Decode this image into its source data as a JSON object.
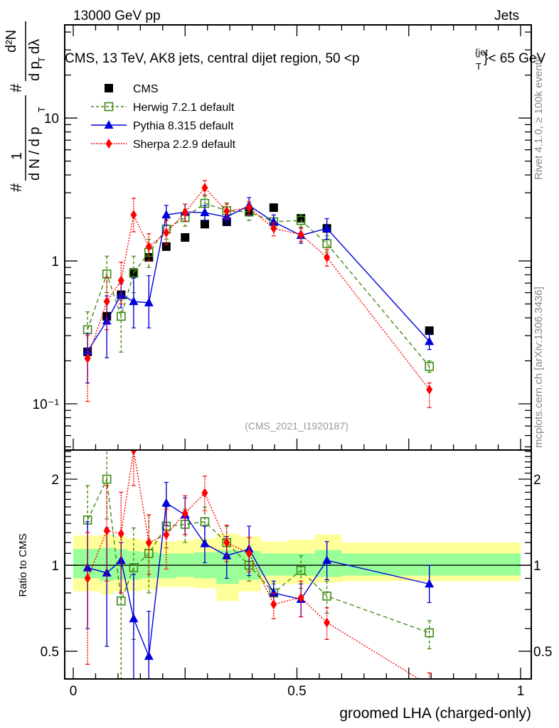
{
  "header": {
    "left": "13000 GeV pp",
    "right": "Jets"
  },
  "side_labels": {
    "rivet": "Rivet 4.1.0, ≥ 100k events",
    "mcplots": "mcplots.cern.ch [arXiv:1306.3436]"
  },
  "chart_data": [
    {
      "type": "line",
      "panel": "main",
      "title": "CMS, 13 TeV, AK8 jets, central dijet region, 50 <p_T^{jet}< 65 GeV",
      "title_parts": {
        "main": "CMS, 13 TeV, AK8 jets, central dijet region, 50 <p",
        "sup": "{jet",
        "sub": "T",
        "tail": "}< 65 GeV"
      },
      "ylabel": "1/N dN/dp_T d²N/dp_T dλ",
      "ylabel_parts": {
        "num1": "1",
        "den1": "d N / d p",
        "den1_sub": "T",
        "num2": "d²N",
        "den2": "d p",
        "den2_sub": "T",
        "den2_tail": " dλ",
        "hash": "#"
      },
      "yscale": "log",
      "ylim": [
        0.0475,
        44.9
      ],
      "xlim": [
        -0.02,
        1.02
      ],
      "yticks": [
        {
          "v": 0.1,
          "label": "10⁻¹"
        },
        {
          "v": 1,
          "label": "1"
        },
        {
          "v": 10,
          "label": "10"
        }
      ],
      "watermark": "(CMS_2021_I1920187)",
      "legend_position": "top-left",
      "x": [
        0.032,
        0.075,
        0.107,
        0.135,
        0.169,
        0.208,
        0.25,
        0.294,
        0.343,
        0.393,
        0.448,
        0.509,
        0.567,
        0.796
      ],
      "series": [
        {
          "name": "CMS",
          "color": "#000000",
          "marker": "square-filled",
          "line": "none",
          "values": [
            0.231,
            0.41,
            0.58,
            0.83,
            1.06,
            1.26,
            1.46,
            1.81,
            1.88,
            2.2,
            2.36,
            1.99,
            1.69,
            0.325
          ]
        },
        {
          "name": "Herwig 7.2.1 default",
          "color": "#3e8a13",
          "marker": "square-open",
          "line": "dashed",
          "values": [
            0.33,
            0.81,
            0.41,
            0.82,
            1.15,
            1.67,
            2.01,
            2.53,
            2.25,
            2.2,
            1.88,
            1.92,
            1.32,
            0.183
          ],
          "err_up": [
            0.44,
            1.08,
            0.53,
            1.08,
            1.42,
            1.95,
            2.3,
            2.85,
            2.55,
            2.5,
            2.1,
            2.12,
            1.5,
            0.2
          ],
          "err_dn": [
            0.24,
            0.6,
            0.23,
            0.6,
            0.9,
            1.42,
            1.75,
            2.25,
            1.97,
            1.92,
            1.67,
            1.72,
            1.15,
            0.166
          ]
        },
        {
          "name": "Pythia 8.315 default",
          "color": "#0000dd",
          "marker": "triangle",
          "line": "solid",
          "values": [
            0.233,
            0.38,
            0.58,
            0.52,
            0.51,
            2.1,
            2.2,
            2.18,
            2.03,
            2.44,
            1.88,
            1.51,
            1.69,
            0.273
          ],
          "err_up": [
            0.31,
            0.57,
            0.69,
            0.76,
            0.79,
            2.45,
            2.5,
            2.45,
            2.27,
            2.78,
            2.1,
            1.7,
            1.98,
            0.31
          ],
          "err_dn": [
            0.14,
            0.21,
            0.47,
            0.34,
            0.34,
            1.78,
            1.9,
            1.9,
            1.81,
            2.1,
            1.66,
            1.33,
            1.42,
            0.24
          ]
        },
        {
          "name": "Sherpa 2.2.9 default",
          "color": "#ff0000",
          "marker": "diamond",
          "line": "dotted",
          "values": [
            0.208,
            0.52,
            0.73,
            2.1,
            1.26,
            1.58,
            2.18,
            3.25,
            2.23,
            2.36,
            1.69,
            1.53,
            1.06,
            0.126
          ],
          "err_up": [
            0.3,
            0.77,
            0.98,
            2.75,
            1.55,
            1.92,
            2.5,
            3.65,
            2.5,
            2.6,
            1.85,
            1.7,
            1.2,
            0.14
          ],
          "err_dn": [
            0.104,
            0.33,
            0.5,
            1.6,
            1.0,
            1.3,
            1.9,
            2.9,
            1.97,
            2.12,
            1.5,
            1.37,
            0.92,
            0.094
          ]
        }
      ]
    },
    {
      "type": "line",
      "panel": "ratio",
      "ylabel": "Ratio to CMS",
      "xlabel": "groomed LHA (charged-only)",
      "yscale": "log",
      "ylim": [
        0.4,
        2.53
      ],
      "xlim": [
        -0.02,
        1.02
      ],
      "yticks": [
        {
          "v": 0.5,
          "label": "0.5"
        },
        {
          "v": 1,
          "label": "1"
        },
        {
          "v": 2,
          "label": "2"
        }
      ],
      "xticks": [
        {
          "v": 0,
          "label": "0"
        },
        {
          "v": 0.5,
          "label": "0.5"
        },
        {
          "v": 1,
          "label": "1"
        }
      ],
      "bands": {
        "edges": [
          0.0,
          0.06,
          0.09,
          0.12,
          0.15,
          0.19,
          0.23,
          0.27,
          0.32,
          0.37,
          0.42,
          0.48,
          0.54,
          0.6,
          1.0
        ],
        "stat_color": "#99ff99",
        "total_color": "#ffff99",
        "stat_up": [
          1.14,
          1.15,
          1.14,
          1.12,
          1.11,
          1.1,
          1.1,
          1.11,
          1.13,
          1.12,
          1.1,
          1.1,
          1.13,
          1.1
        ],
        "stat_dn": [
          0.9,
          0.88,
          0.89,
          0.89,
          0.9,
          0.9,
          0.91,
          0.9,
          0.86,
          0.89,
          0.92,
          0.92,
          0.91,
          0.92
        ],
        "total_up": [
          1.27,
          1.28,
          1.26,
          1.24,
          1.22,
          1.21,
          1.22,
          1.24,
          1.29,
          1.26,
          1.21,
          1.23,
          1.28,
          1.2
        ],
        "total_dn": [
          0.81,
          0.79,
          0.81,
          0.81,
          0.82,
          0.84,
          0.84,
          0.83,
          0.75,
          0.81,
          0.86,
          0.86,
          0.87,
          0.88
        ]
      },
      "x": [
        0.032,
        0.075,
        0.107,
        0.135,
        0.169,
        0.208,
        0.25,
        0.294,
        0.343,
        0.393,
        0.448,
        0.509,
        0.567,
        0.796
      ],
      "series": [
        {
          "name": "Herwig 7.2.1 default",
          "color": "#3e8a13",
          "marker": "square-open",
          "line": "dashed",
          "values": [
            1.44,
            2.0,
            0.75,
            0.98,
            1.1,
            1.37,
            1.39,
            1.42,
            1.2,
            1.0,
            0.8,
            0.96,
            0.78,
            0.58
          ],
          "err_up": [
            1.9,
            2.6,
            1.3,
            1.35,
            1.5,
            1.6,
            1.57,
            1.6,
            1.37,
            1.13,
            0.86,
            1.08,
            0.88,
            0.64
          ],
          "err_dn": [
            1.0,
            1.45,
            0.3,
            0.55,
            0.8,
            1.15,
            1.2,
            1.22,
            1.05,
            0.88,
            0.73,
            0.83,
            0.68,
            0.51
          ]
        },
        {
          "name": "Pythia 8.315 default",
          "color": "#0000dd",
          "marker": "triangle",
          "line": "solid",
          "values": [
            0.98,
            0.94,
            1.04,
            0.65,
            0.48,
            1.65,
            1.5,
            1.19,
            1.08,
            1.14,
            0.8,
            0.76,
            1.04,
            0.86
          ],
          "err_up": [
            1.42,
            1.35,
            1.2,
            0.93,
            0.69,
            1.95,
            1.72,
            1.37,
            1.26,
            1.37,
            0.88,
            0.86,
            1.21,
            1.0
          ],
          "err_dn": [
            0.6,
            0.52,
            0.8,
            0.3,
            0.3,
            1.38,
            1.28,
            1.02,
            0.9,
            0.92,
            0.72,
            0.66,
            0.89,
            0.74
          ]
        },
        {
          "name": "Sherpa 2.2.9 default",
          "color": "#ff0000",
          "marker": "diamond",
          "line": "dotted",
          "values": [
            0.9,
            1.32,
            1.29,
            2.53,
            1.2,
            1.28,
            1.52,
            1.79,
            1.2,
            1.1,
            0.73,
            0.77,
            0.63,
            0.38
          ],
          "err_up": [
            1.3,
            1.9,
            1.8,
            3.2,
            1.5,
            1.57,
            1.75,
            2.05,
            1.38,
            1.25,
            0.8,
            0.88,
            0.71,
            0.42
          ],
          "err_dn": [
            0.45,
            0.88,
            0.8,
            1.9,
            0.93,
            0.97,
            1.28,
            1.55,
            1.03,
            0.95,
            0.65,
            0.66,
            0.55,
            0.34
          ]
        }
      ]
    }
  ]
}
